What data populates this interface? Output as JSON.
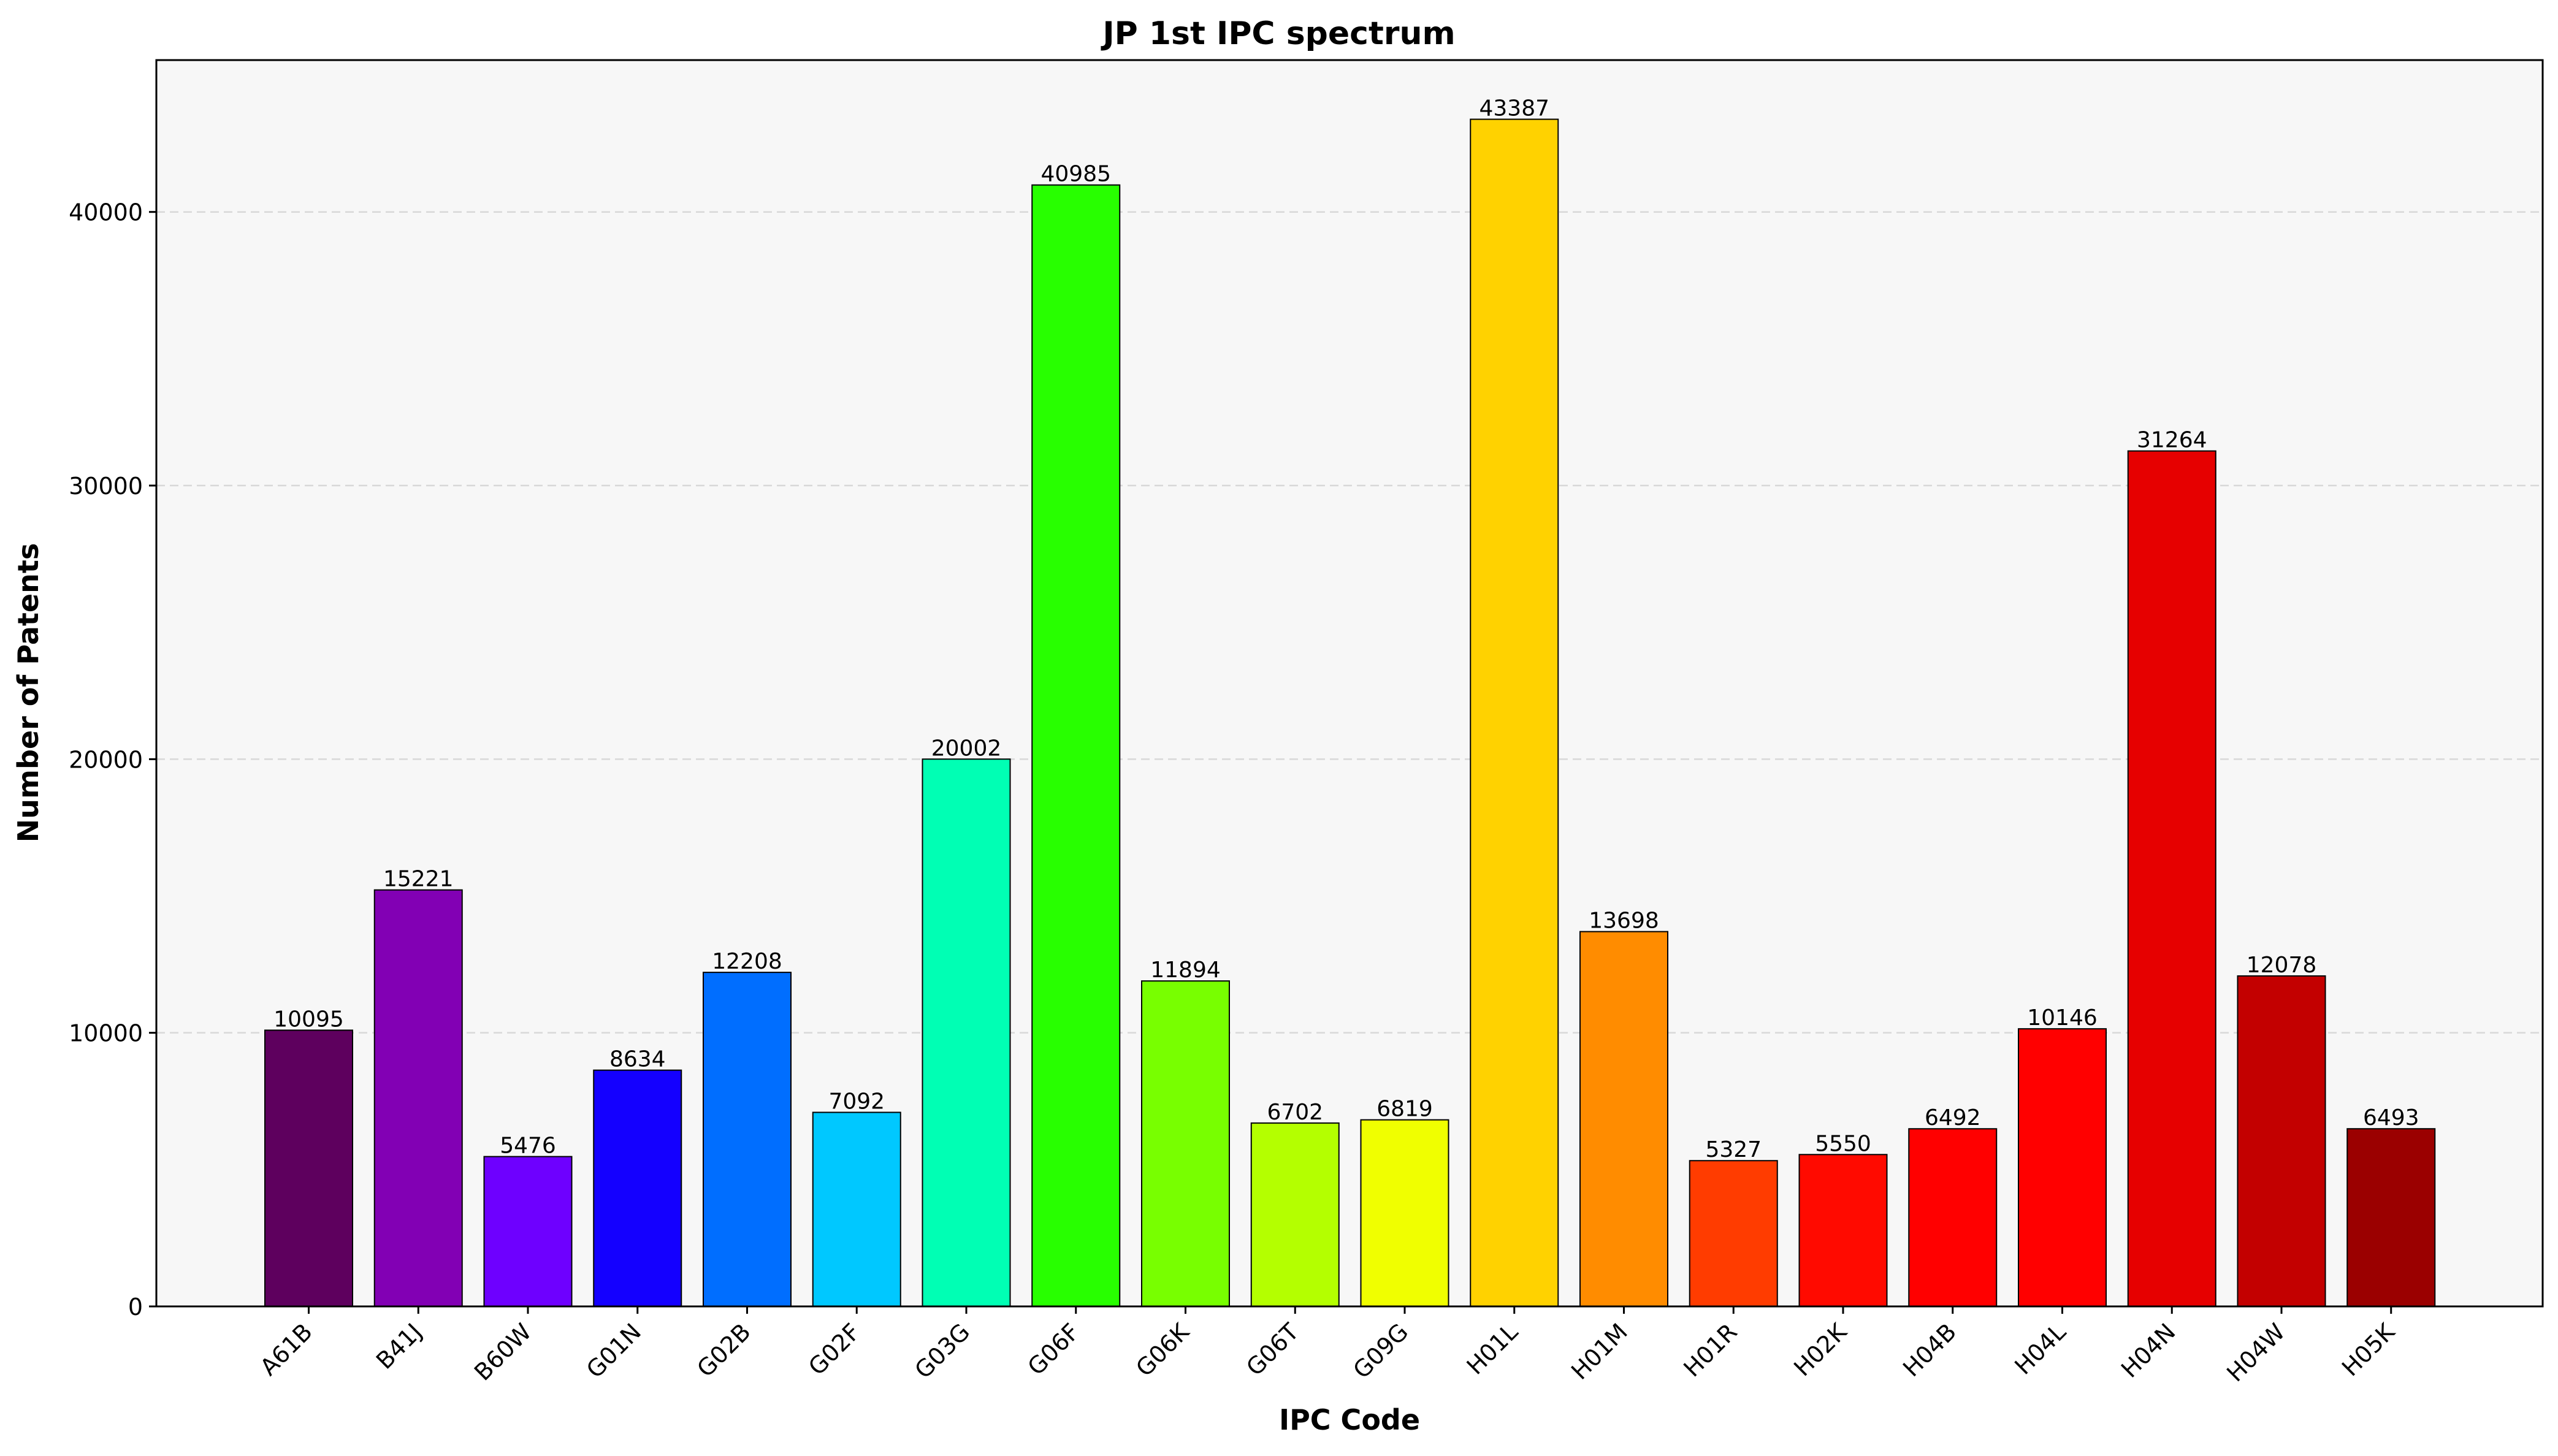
{
  "chart_data": {
    "type": "bar",
    "title": "JP 1st IPC spectrum",
    "xlabel": "IPC Code",
    "ylabel": "Number of Patents",
    "categories": [
      "A61B",
      "B41J",
      "B60W",
      "G01N",
      "G02B",
      "G02F",
      "G03G",
      "G06F",
      "G06K",
      "G06T",
      "G09G",
      "H01L",
      "H01M",
      "H01R",
      "H02K",
      "H04B",
      "H04L",
      "H04N",
      "H04W",
      "H05K"
    ],
    "values": [
      10095,
      15221,
      5476,
      8634,
      12208,
      7092,
      20002,
      40985,
      11894,
      6702,
      6819,
      43387,
      13698,
      5327,
      5550,
      6492,
      10146,
      31264,
      12078,
      6493
    ],
    "colors": [
      "#5e005e",
      "#8200b4",
      "#6e00ff",
      "#1400ff",
      "#006eff",
      "#00c8ff",
      "#00ffb4",
      "#28ff00",
      "#78ff00",
      "#b4ff00",
      "#f0ff00",
      "#ffd200",
      "#ff8c00",
      "#ff3c00",
      "#ff0a00",
      "#ff0000",
      "#ff0000",
      "#e60000",
      "#c30000",
      "#9b0000"
    ],
    "ylim": [
      0,
      45550
    ],
    "yticks": [
      0,
      10000,
      20000,
      30000,
      40000
    ],
    "ytick_labels": [
      "0",
      "10000",
      "20000",
      "30000",
      "40000"
    ],
    "grid": true,
    "data_labels": true
  }
}
